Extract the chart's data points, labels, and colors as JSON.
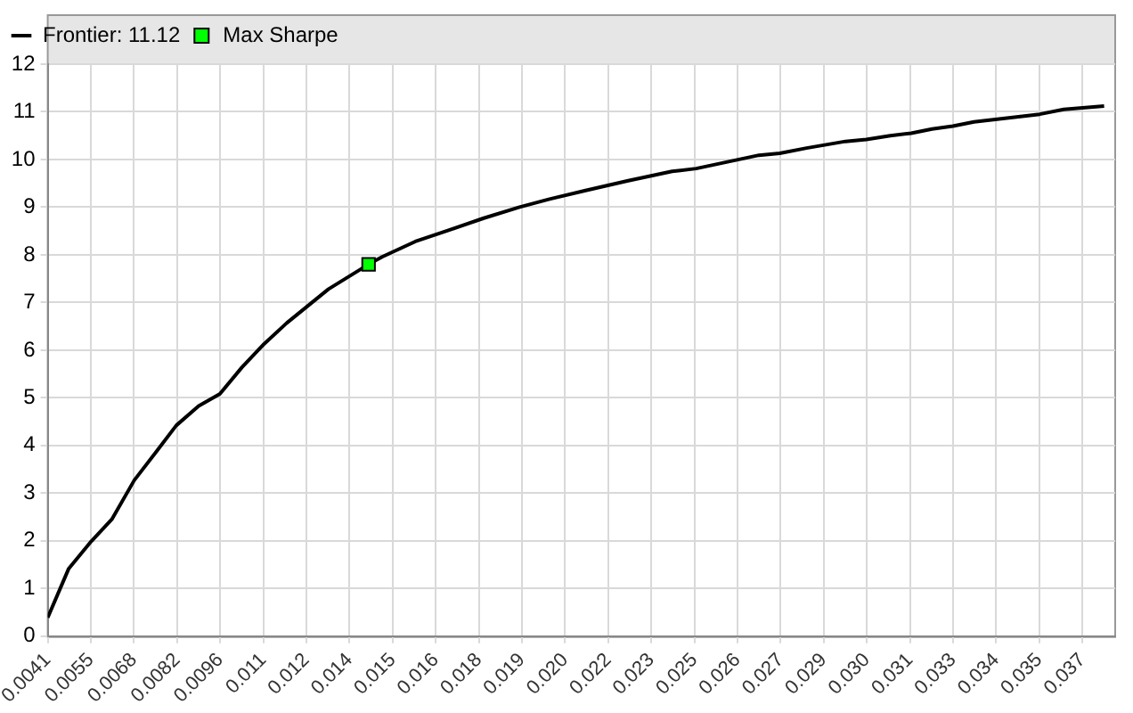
{
  "chart_data": {
    "type": "line",
    "legend": "top left",
    "grid": true,
    "xlim": [
      0.0041,
      0.0379
    ],
    "xticks": [
      {
        "value": 0.0041,
        "label": "0.0041"
      },
      {
        "value": 0.005465,
        "label": "0.0055"
      },
      {
        "value": 0.00683,
        "label": "0.0068"
      },
      {
        "value": 0.008195,
        "label": "0.0082"
      },
      {
        "value": 0.00956,
        "label": "0.0096"
      },
      {
        "value": 0.010925,
        "label": "0.011"
      },
      {
        "value": 0.01229,
        "label": "0.012"
      },
      {
        "value": 0.013655,
        "label": "0.014"
      },
      {
        "value": 0.01502,
        "label": "0.015"
      },
      {
        "value": 0.016385,
        "label": "0.016"
      },
      {
        "value": 0.01775,
        "label": "0.018"
      },
      {
        "value": 0.019115,
        "label": "0.019"
      },
      {
        "value": 0.02048,
        "label": "0.020"
      },
      {
        "value": 0.021845,
        "label": "0.022"
      },
      {
        "value": 0.02321,
        "label": "0.023"
      },
      {
        "value": 0.024575,
        "label": "0.025"
      },
      {
        "value": 0.02594,
        "label": "0.026"
      },
      {
        "value": 0.027305,
        "label": "0.027"
      },
      {
        "value": 0.02867,
        "label": "0.029"
      },
      {
        "value": 0.030035,
        "label": "0.030"
      },
      {
        "value": 0.0314,
        "label": "0.031"
      },
      {
        "value": 0.032765,
        "label": "0.033"
      },
      {
        "value": 0.03413,
        "label": "0.034"
      },
      {
        "value": 0.035495,
        "label": "0.035"
      },
      {
        "value": 0.03686,
        "label": "0.037"
      }
    ],
    "ylim": [
      0,
      12
    ],
    "yticks": [
      0,
      1,
      2,
      3,
      4,
      5,
      6,
      7,
      8,
      9,
      10,
      11,
      12
    ],
    "series": [
      {
        "name": "Frontier: 11.12",
        "color": "#000000",
        "marker": "none",
        "x": [
          0.0041,
          0.00476,
          0.00548,
          0.00613,
          0.00684,
          0.00755,
          0.00817,
          0.00888,
          0.00955,
          0.01025,
          0.01095,
          0.01167,
          0.01299,
          0.01426,
          0.0147,
          0.01574,
          0.01677,
          0.01791,
          0.01904,
          0.01999,
          0.02113,
          0.02245,
          0.02387,
          0.02463,
          0.02662,
          0.02728,
          0.02813,
          0.02936,
          0.03002,
          0.03078,
          0.03144,
          0.0321,
          0.03276,
          0.03343,
          0.03551,
          0.03627,
          0.03755
        ],
        "values": [
          0.39,
          1.41,
          1.99,
          2.45,
          3.27,
          3.88,
          4.42,
          4.83,
          5.08,
          5.64,
          6.13,
          6.57,
          7.28,
          7.8,
          7.96,
          8.28,
          8.51,
          8.77,
          9.0,
          9.17,
          9.35,
          9.55,
          9.75,
          9.81,
          10.09,
          10.13,
          10.24,
          10.38,
          10.42,
          10.5,
          10.55,
          10.64,
          10.7,
          10.79,
          10.95,
          11.05,
          11.12
        ]
      },
      {
        "name": "Max Sharpe",
        "type": "scatter",
        "color": "#00ff00",
        "marker": "square",
        "x": [
          0.01426
        ],
        "values": [
          7.8
        ]
      }
    ]
  }
}
